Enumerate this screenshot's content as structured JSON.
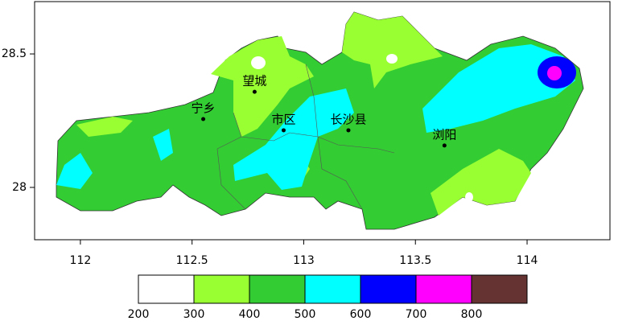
{
  "map": {
    "xlim": [
      111.795,
      114.371
    ],
    "ylim": [
      27.804,
      28.696
    ],
    "xticks": [
      112,
      112.5,
      113,
      113.5,
      114
    ],
    "yticks": [
      28,
      28.5
    ],
    "places": [
      {
        "name": "望城",
        "lon": 112.78,
        "lat": 28.358
      },
      {
        "name": "宁乡",
        "lon": 112.55,
        "lat": 28.256
      },
      {
        "name": "市区",
        "lon": 112.91,
        "lat": 28.214
      },
      {
        "name": "长沙县",
        "lon": 113.2,
        "lat": 28.214
      },
      {
        "name": "浏阳",
        "lon": 113.63,
        "lat": 28.157
      }
    ]
  },
  "colorbar": {
    "levels": [
      200,
      300,
      400,
      500,
      600,
      700,
      800
    ],
    "colors": [
      "#ffffff",
      "#99ff33",
      "#33cc33",
      "#00ffff",
      "#0000ff",
      "#ff00ff",
      "#663333"
    ]
  }
}
